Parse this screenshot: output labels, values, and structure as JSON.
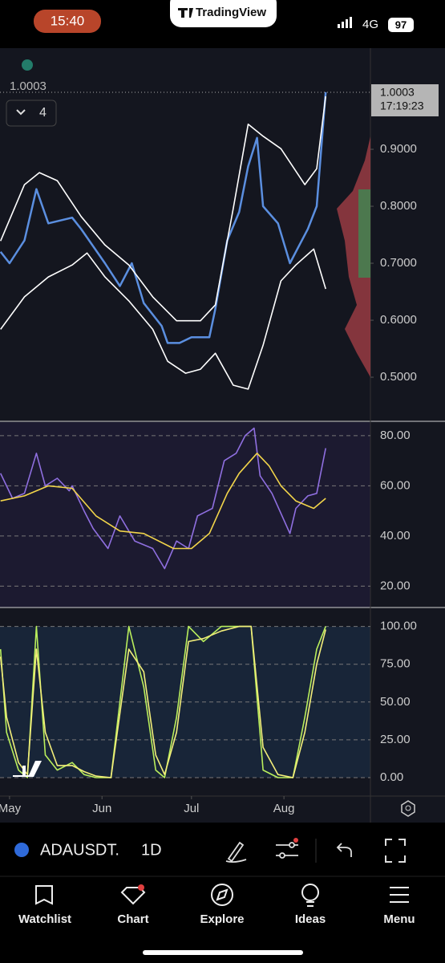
{
  "status_bar": {
    "time": "15:40",
    "app": "TradingView",
    "network": "4G",
    "battery": "97"
  },
  "chart": {
    "last_price": "1.0003",
    "countdown": "17:19:23",
    "badge": "4",
    "xlim": [
      -3.2,
      121
    ],
    "xticks": [
      {
        "value": 0,
        "label": "May"
      },
      {
        "value": 31,
        "label": "Jun"
      },
      {
        "value": 61,
        "label": "Jul"
      },
      {
        "value": 92,
        "label": "Aug"
      }
    ],
    "panes": [
      {
        "type": "line",
        "grid": false,
        "ylim": [
          0.424,
          1.0775
        ],
        "yticks": [
          {
            "value": 0.9,
            "label": "0.9000"
          },
          {
            "value": 0.8,
            "label": "0.8000"
          },
          {
            "value": 0.7,
            "label": "0.7000"
          },
          {
            "value": 0.6,
            "label": "0.6000"
          },
          {
            "value": 0.5,
            "label": "0.5000"
          }
        ],
        "series": [
          {
            "color": "#5b8fe0",
            "x": [
              -3,
              0,
              5,
              9,
              13,
              21,
              24,
              32,
              37,
              41,
              45,
              51,
              53,
              57,
              61,
              67,
              69,
              73,
              77,
              80,
              83,
              85,
              90,
              94,
              96,
              100,
              103,
              106
            ],
            "values": [
              0.72,
              0.7,
              0.74,
              0.83,
              0.77,
              0.78,
              0.76,
              0.7,
              0.66,
              0.7,
              0.63,
              0.59,
              0.56,
              0.56,
              0.57,
              0.57,
              0.62,
              0.74,
              0.79,
              0.87,
              0.92,
              0.8,
              0.77,
              0.7,
              0.72,
              0.76,
              0.8,
              1.0003
            ]
          },
          {
            "color": "#ffffff",
            "x": [
              -3,
              5,
              10,
              16,
              24,
              32,
              40,
              48,
              56,
              64,
              69,
              75,
              80,
              85,
              91,
              99,
              103,
              106
            ],
            "values": [
              0.739,
              0.838,
              0.859,
              0.845,
              0.782,
              0.732,
              0.697,
              0.641,
              0.599,
              0.599,
              0.627,
              0.796,
              0.944,
              0.923,
              0.901,
              0.838,
              0.866,
              0.993
            ]
          },
          {
            "color": "#ffffff",
            "x": [
              -3,
              5,
              13,
              21,
              26,
              32,
              40,
              48,
              53,
              59,
              64,
              69,
              75,
              80,
              85,
              91,
              96,
              102,
              106
            ],
            "values": [
              0.584,
              0.641,
              0.676,
              0.697,
              0.718,
              0.676,
              0.634,
              0.584,
              0.528,
              0.507,
              0.514,
              0.542,
              0.486,
              0.479,
              0.556,
              0.669,
              0.697,
              0.725,
              0.655
            ]
          }
        ]
      },
      {
        "type": "line",
        "grid": true,
        "ylim": [
          11.5,
          85.4
        ],
        "yticks": [
          {
            "value": 80,
            "label": "80.00"
          },
          {
            "value": 60,
            "label": "60.00"
          },
          {
            "value": 40,
            "label": "40.00"
          },
          {
            "value": 20,
            "label": "20.00"
          }
        ],
        "series": [
          {
            "color": "#8f6fe0",
            "x": [
              -3,
              1,
              5,
              9,
              12,
              16,
              20,
              21,
              25,
              28,
              33,
              37,
              42,
              48,
              52,
              56,
              60,
              63,
              68,
              72,
              76,
              79,
              82,
              84,
              88,
              94,
              96,
              100,
              103,
              106
            ],
            "values": [
              65,
              55,
              57,
              73,
              60,
              63,
              58,
              60,
              50,
              43,
              35,
              48,
              38,
              35,
              27,
              38,
              35,
              48,
              51,
              70,
              73,
              80,
              83,
              64,
              57,
              41,
              51,
              56,
              57,
              75
            ]
          },
          {
            "color": "#f2d54a",
            "x": [
              -3,
              5,
              13,
              21,
              29,
              37,
              45,
              55,
              61,
              67,
              73,
              77,
              83,
              87,
              91,
              96,
              102,
              106
            ],
            "values": [
              54,
              56,
              60,
              59,
              48,
              42,
              41,
              35,
              35,
              41,
              57,
              65,
              73,
              68,
              60,
              54,
              51,
              55
            ]
          }
        ]
      },
      {
        "type": "line",
        "grid": true,
        "ylim": [
          -12.2,
          112
        ],
        "yticks": [
          {
            "value": 100,
            "label": "100.00"
          },
          {
            "value": 75,
            "label": "75.00"
          },
          {
            "value": 50,
            "label": "50.00"
          },
          {
            "value": 25,
            "label": "25.00"
          },
          {
            "value": 0,
            "label": "0.00"
          }
        ],
        "series": [
          {
            "color": "#b9ee5c",
            "x": [
              -3,
              -1,
              3,
              6,
              9,
              12,
              16,
              21,
              25,
              29,
              34,
              40,
              45,
              49,
              52,
              56,
              60,
              65,
              71,
              77,
              81,
              85,
              90,
              95,
              99,
              103,
              106
            ],
            "values": [
              85,
              30,
              5,
              0,
              100,
              15,
              5,
              10,
              2,
              0,
              0,
              100,
              60,
              5,
              0,
              40,
              100,
              90,
              100,
              100,
              100,
              5,
              0,
              0,
              40,
              85,
              100
            ]
          },
          {
            "color": "#f3ee7a",
            "x": [
              -3,
              -1,
              3,
              6,
              9,
              12,
              16,
              21,
              25,
              29,
              34,
              40,
              45,
              49,
              52,
              56,
              60,
              65,
              71,
              77,
              81,
              85,
              90,
              95,
              99,
              103,
              106
            ],
            "values": [
              80,
              40,
              10,
              2,
              85,
              30,
              8,
              8,
              4,
              1,
              0,
              85,
              70,
              15,
              2,
              30,
              90,
              92,
              97,
              100,
              100,
              20,
              2,
              0,
              30,
              75,
              98
            ]
          }
        ]
      }
    ]
  },
  "toolbar": {
    "symbol": "ADAUSDT.",
    "interval": "1D"
  },
  "tabs": [
    "Watchlist",
    "Chart",
    "Explore",
    "Ideas",
    "Menu"
  ]
}
